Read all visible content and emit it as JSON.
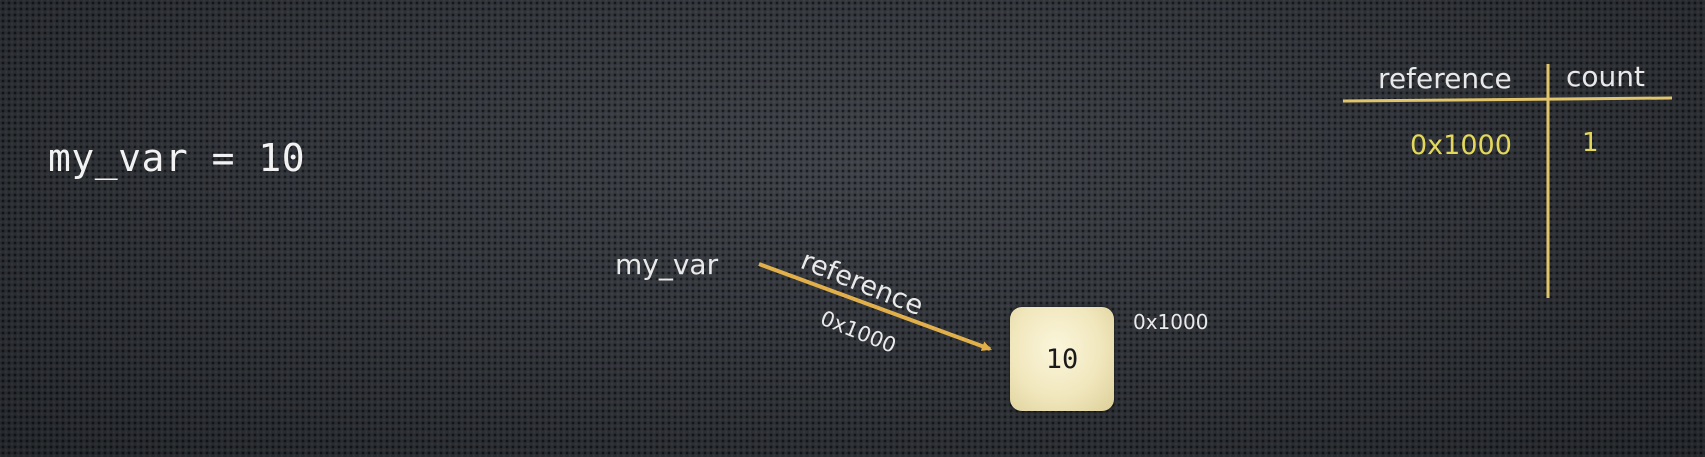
{
  "code": {
    "line": "my_var = 10"
  },
  "diagram": {
    "variable_name": "my_var",
    "arrow_label": "reference",
    "arrow_address": "0x1000",
    "object_value": "10",
    "object_address": "0x1000"
  },
  "ref_table": {
    "headers": {
      "reference": "reference",
      "count": "count"
    },
    "rows": [
      {
        "reference": "0x1000",
        "count": "1"
      }
    ]
  },
  "colors": {
    "arrow": "#e2b04a",
    "table_lines": "#e2c56a",
    "table_values": "#e3d85a",
    "object_fill": "#f1e7bd"
  }
}
